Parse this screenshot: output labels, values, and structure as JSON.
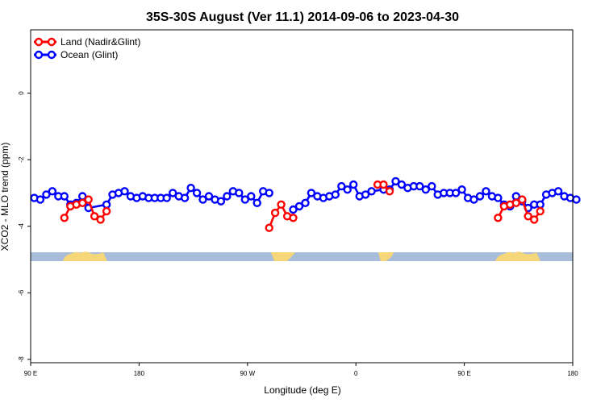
{
  "chart_data": {
    "type": "line",
    "title": "35S-30S August (Ver 11.1)   2014-09-06 to 2023-04-30",
    "xlabel": "Longitude (deg E)",
    "ylabel": "XCO2 - MLO trend (ppm)",
    "xlim": [
      90,
      540
    ],
    "ylim": [
      -8.1,
      1.9
    ],
    "x_ticks": [
      {
        "value": 90,
        "label": "90 E"
      },
      {
        "value": 180,
        "label": "180"
      },
      {
        "value": 270,
        "label": "90 W"
      },
      {
        "value": 360,
        "label": "0"
      },
      {
        "value": 450,
        "label": "90 E"
      },
      {
        "value": 540,
        "label": "180"
      }
    ],
    "y_ticks": [
      {
        "value": 0,
        "label": "0"
      },
      {
        "value": -2,
        "label": "-2"
      },
      {
        "value": -4,
        "label": "-4"
      },
      {
        "value": -6,
        "label": "-6"
      },
      {
        "value": -8,
        "label": "-8"
      }
    ],
    "legend_position": "top-left",
    "series": [
      {
        "name": "Land (Nadir&Glint)",
        "color": "#ff0000",
        "segments": [
          {
            "x": [
              118,
              123,
              128,
              133,
              138,
              143,
              148,
              153
            ],
            "y": [
              -3.75,
              -3.4,
              -3.35,
              -3.3,
              -3.2,
              -3.7,
              -3.8,
              -3.55
            ]
          },
          {
            "x": [
              288,
              293,
              298,
              303,
              308
            ],
            "y": [
              -4.05,
              -3.6,
              -3.35,
              -3.7,
              -3.75
            ]
          },
          {
            "x": [
              378,
              383,
              388
            ],
            "y": [
              -2.75,
              -2.75,
              -2.95
            ]
          },
          {
            "x": [
              478,
              483,
              488,
              493,
              498,
              503,
              508,
              513
            ],
            "y": [
              -3.75,
              -3.4,
              -3.35,
              -3.3,
              -3.2,
              -3.7,
              -3.8,
              -3.55
            ]
          }
        ]
      },
      {
        "name": "Ocean (Glint)",
        "color": "#0000ff",
        "segments": [
          {
            "x": [
              93,
              98,
              103,
              108,
              113,
              118,
              123,
              128,
              133,
              138,
              153,
              158,
              163,
              168,
              173,
              178,
              183,
              188,
              193,
              198,
              203,
              208,
              213,
              218,
              223,
              228,
              233,
              238,
              243,
              248,
              253,
              258,
              263,
              268,
              273,
              278,
              283,
              288
            ],
            "y": [
              -3.15,
              -3.2,
              -3.05,
              -2.95,
              -3.1,
              -3.1,
              -3.35,
              -3.3,
              -3.1,
              -3.45,
              -3.35,
              -3.05,
              -3.0,
              -2.95,
              -3.1,
              -3.15,
              -3.1,
              -3.15,
              -3.15,
              -3.15,
              -3.15,
              -3.0,
              -3.1,
              -3.15,
              -2.85,
              -3.0,
              -3.2,
              -3.1,
              -3.2,
              -3.25,
              -3.1,
              -2.95,
              -3.0,
              -3.2,
              -3.1,
              -3.3,
              -2.95,
              -3.0
            ]
          },
          {
            "x": [
              308,
              313,
              318,
              323,
              328,
              333,
              338,
              343,
              348,
              353,
              358,
              363,
              368,
              373,
              383,
              388,
              393,
              398,
              403,
              408,
              413,
              418,
              423,
              428,
              433,
              438,
              443,
              448,
              453,
              458,
              463,
              468,
              473,
              478,
              483,
              488,
              493,
              498,
              503,
              508,
              513,
              518,
              523,
              528,
              533,
              538,
              543
            ],
            "y": [
              -3.5,
              -3.4,
              -3.3,
              -3.0,
              -3.1,
              -3.15,
              -3.1,
              -3.05,
              -2.8,
              -2.9,
              -2.75,
              -3.1,
              -3.05,
              -2.95,
              -2.9,
              -2.9,
              -2.65,
              -2.75,
              -2.85,
              -2.8,
              -2.8,
              -2.9,
              -2.8,
              -3.05,
              -3.0,
              -3.0,
              -3.0,
              -2.9,
              -3.15,
              -3.2,
              -3.1,
              -2.95,
              -3.1,
              -3.15,
              -3.35,
              -3.4,
              -3.1,
              -3.25,
              -3.45,
              -3.35,
              -3.35,
              -3.05,
              -3.0,
              -2.95,
              -3.1,
              -3.15,
              -3.2
            ]
          }
        ]
      }
    ]
  }
}
